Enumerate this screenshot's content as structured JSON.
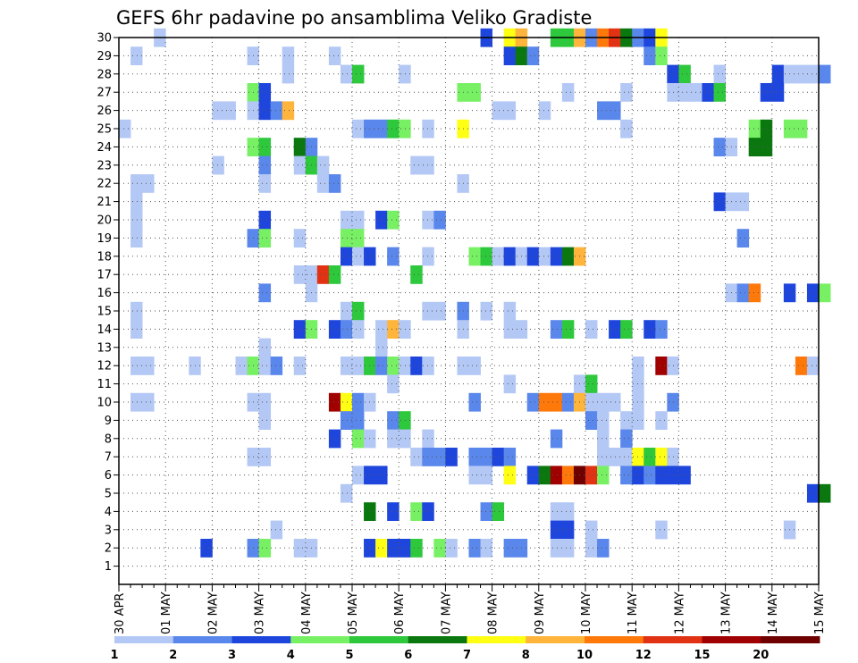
{
  "chart_data": {
    "type": "heatmap",
    "title": "GEFS 6hr padavine po ansamblima Veliko Gradiste",
    "xlabel": "",
    "ylabel": "",
    "y_members": [
      1,
      2,
      3,
      4,
      5,
      6,
      7,
      8,
      9,
      10,
      11,
      12,
      13,
      14,
      15,
      16,
      17,
      18,
      19,
      20,
      21,
      22,
      23,
      24,
      25,
      26,
      27,
      28,
      29,
      30
    ],
    "ylim": [
      0,
      30
    ],
    "x_tick_labels": [
      "30 APR",
      "01 MAY",
      "02 MAY",
      "03 MAY",
      "04 MAY",
      "05 MAY",
      "06 MAY",
      "07 MAY",
      "08 MAY",
      "09 MAY",
      "10 MAY",
      "11 MAY",
      "12 MAY",
      "13 MAY",
      "14 MAY",
      "15 MAY"
    ],
    "time_step_hours": 6,
    "steps_per_day": 4,
    "grid": true,
    "colorbar": {
      "position": "bottom",
      "levels": [
        "1",
        "2",
        "3",
        "4",
        "5",
        "6",
        "7",
        "8",
        "10",
        "12",
        "15",
        "20"
      ],
      "colors": [
        "#b4c8f5",
        "#5a87eb",
        "#1e46dc",
        "#78f064",
        "#2dc83c",
        "#0a780f",
        "#ffff14",
        "#ffb43c",
        "#ff780a",
        "#e13214",
        "#a00000",
        "#6e0000"
      ]
    },
    "cells": [
      [
        30,
        3,
        0
      ],
      [
        30,
        31,
        2
      ],
      [
        30,
        33,
        6
      ],
      [
        30,
        34,
        7
      ],
      [
        30,
        37,
        4
      ],
      [
        30,
        38,
        4
      ],
      [
        30,
        39,
        7
      ],
      [
        30,
        40,
        1
      ],
      [
        30,
        41,
        8
      ],
      [
        30,
        42,
        9
      ],
      [
        30,
        43,
        5
      ],
      [
        30,
        44,
        1
      ],
      [
        30,
        45,
        2
      ],
      [
        30,
        46,
        6
      ],
      [
        29,
        1,
        0
      ],
      [
        29,
        11,
        0
      ],
      [
        29,
        14,
        0
      ],
      [
        29,
        18,
        0
      ],
      [
        29,
        33,
        2
      ],
      [
        29,
        34,
        5
      ],
      [
        29,
        35,
        1
      ],
      [
        29,
        45,
        1
      ],
      [
        29,
        46,
        3
      ],
      [
        28,
        14,
        0
      ],
      [
        28,
        19,
        0
      ],
      [
        28,
        20,
        4
      ],
      [
        28,
        24,
        0
      ],
      [
        28,
        47,
        2
      ],
      [
        28,
        48,
        4
      ],
      [
        28,
        51,
        0
      ],
      [
        28,
        56,
        2
      ],
      [
        28,
        57,
        0
      ],
      [
        28,
        58,
        0
      ],
      [
        28,
        59,
        0
      ],
      [
        28,
        60,
        1
      ],
      [
        27,
        11,
        3
      ],
      [
        27,
        12,
        2
      ],
      [
        27,
        29,
        3
      ],
      [
        27,
        30,
        3
      ],
      [
        27,
        38,
        0
      ],
      [
        27,
        43,
        0
      ],
      [
        27,
        47,
        0
      ],
      [
        27,
        48,
        0
      ],
      [
        27,
        49,
        0
      ],
      [
        27,
        50,
        2
      ],
      [
        27,
        51,
        4
      ],
      [
        27,
        55,
        2
      ],
      [
        27,
        56,
        2
      ],
      [
        26,
        8,
        0
      ],
      [
        26,
        9,
        0
      ],
      [
        26,
        11,
        0
      ],
      [
        26,
        12,
        2
      ],
      [
        26,
        13,
        1
      ],
      [
        26,
        14,
        7
      ],
      [
        26,
        32,
        0
      ],
      [
        26,
        33,
        0
      ],
      [
        26,
        36,
        0
      ],
      [
        26,
        41,
        1
      ],
      [
        26,
        42,
        1
      ],
      [
        25,
        0,
        0
      ],
      [
        25,
        20,
        0
      ],
      [
        25,
        21,
        1
      ],
      [
        25,
        22,
        1
      ],
      [
        25,
        23,
        4
      ],
      [
        25,
        24,
        3
      ],
      [
        25,
        26,
        0
      ],
      [
        25,
        29,
        6
      ],
      [
        25,
        43,
        0
      ],
      [
        25,
        54,
        3
      ],
      [
        25,
        55,
        5
      ],
      [
        25,
        57,
        3
      ],
      [
        25,
        58,
        3
      ],
      [
        24,
        11,
        3
      ],
      [
        24,
        12,
        4
      ],
      [
        24,
        15,
        5
      ],
      [
        24,
        16,
        1
      ],
      [
        24,
        51,
        1
      ],
      [
        24,
        52,
        0
      ],
      [
        24,
        54,
        5
      ],
      [
        24,
        55,
        5
      ],
      [
        23,
        8,
        0
      ],
      [
        23,
        12,
        1
      ],
      [
        23,
        15,
        0
      ],
      [
        23,
        16,
        4
      ],
      [
        23,
        17,
        0
      ],
      [
        23,
        25,
        0
      ],
      [
        23,
        26,
        0
      ],
      [
        22,
        1,
        0
      ],
      [
        22,
        2,
        0
      ],
      [
        22,
        12,
        0
      ],
      [
        22,
        17,
        0
      ],
      [
        22,
        18,
        1
      ],
      [
        22,
        29,
        0
      ],
      [
        21,
        1,
        0
      ],
      [
        21,
        51,
        2
      ],
      [
        21,
        52,
        0
      ],
      [
        21,
        53,
        0
      ],
      [
        20,
        1,
        0
      ],
      [
        20,
        12,
        2
      ],
      [
        20,
        19,
        0
      ],
      [
        20,
        20,
        0
      ],
      [
        20,
        22,
        2
      ],
      [
        20,
        23,
        3
      ],
      [
        20,
        26,
        0
      ],
      [
        20,
        27,
        1
      ],
      [
        19,
        1,
        0
      ],
      [
        19,
        11,
        1
      ],
      [
        19,
        12,
        3
      ],
      [
        19,
        15,
        0
      ],
      [
        19,
        19,
        3
      ],
      [
        19,
        20,
        3
      ],
      [
        19,
        53,
        1
      ],
      [
        18,
        19,
        2
      ],
      [
        18,
        20,
        0
      ],
      [
        18,
        21,
        2
      ],
      [
        18,
        23,
        1
      ],
      [
        18,
        26,
        0
      ],
      [
        18,
        30,
        3
      ],
      [
        18,
        31,
        4
      ],
      [
        18,
        32,
        0
      ],
      [
        18,
        33,
        2
      ],
      [
        18,
        34,
        0
      ],
      [
        18,
        35,
        2
      ],
      [
        18,
        36,
        0
      ],
      [
        18,
        37,
        2
      ],
      [
        18,
        38,
        5
      ],
      [
        18,
        39,
        7
      ],
      [
        17,
        15,
        0
      ],
      [
        17,
        16,
        0
      ],
      [
        17,
        17,
        9
      ],
      [
        17,
        18,
        4
      ],
      [
        17,
        25,
        4
      ],
      [
        16,
        12,
        1
      ],
      [
        16,
        16,
        0
      ],
      [
        16,
        52,
        0
      ],
      [
        16,
        53,
        1
      ],
      [
        16,
        54,
        8
      ],
      [
        16,
        57,
        2
      ],
      [
        16,
        59,
        2
      ],
      [
        16,
        60,
        3
      ],
      [
        15,
        1,
        0
      ],
      [
        15,
        19,
        0
      ],
      [
        15,
        20,
        4
      ],
      [
        15,
        26,
        0
      ],
      [
        15,
        27,
        0
      ],
      [
        15,
        29,
        1
      ],
      [
        15,
        31,
        0
      ],
      [
        15,
        33,
        0
      ],
      [
        14,
        1,
        0
      ],
      [
        14,
        15,
        2
      ],
      [
        14,
        16,
        3
      ],
      [
        14,
        18,
        2
      ],
      [
        14,
        19,
        1
      ],
      [
        14,
        20,
        0
      ],
      [
        14,
        22,
        0
      ],
      [
        14,
        23,
        7
      ],
      [
        14,
        24,
        0
      ],
      [
        14,
        29,
        0
      ],
      [
        14,
        33,
        0
      ],
      [
        14,
        34,
        0
      ],
      [
        14,
        37,
        1
      ],
      [
        14,
        38,
        4
      ],
      [
        14,
        40,
        0
      ],
      [
        14,
        42,
        2
      ],
      [
        14,
        43,
        4
      ],
      [
        14,
        45,
        2
      ],
      [
        14,
        46,
        1
      ],
      [
        13,
        12,
        0
      ],
      [
        13,
        22,
        0
      ],
      [
        12,
        1,
        0
      ],
      [
        12,
        2,
        0
      ],
      [
        12,
        6,
        0
      ],
      [
        12,
        10,
        0
      ],
      [
        12,
        11,
        3
      ],
      [
        12,
        12,
        0
      ],
      [
        12,
        13,
        1
      ],
      [
        12,
        15,
        0
      ],
      [
        12,
        19,
        0
      ],
      [
        12,
        20,
        0
      ],
      [
        12,
        21,
        4
      ],
      [
        12,
        22,
        1
      ],
      [
        12,
        23,
        3
      ],
      [
        12,
        24,
        0
      ],
      [
        12,
        25,
        2
      ],
      [
        12,
        26,
        0
      ],
      [
        12,
        29,
        0
      ],
      [
        12,
        30,
        0
      ],
      [
        12,
        44,
        0
      ],
      [
        12,
        46,
        10
      ],
      [
        12,
        47,
        0
      ],
      [
        12,
        58,
        8
      ],
      [
        12,
        59,
        0
      ],
      [
        11,
        23,
        0
      ],
      [
        11,
        33,
        0
      ],
      [
        11,
        39,
        0
      ],
      [
        11,
        40,
        4
      ],
      [
        11,
        44,
        0
      ],
      [
        10,
        1,
        0
      ],
      [
        10,
        2,
        0
      ],
      [
        10,
        11,
        0
      ],
      [
        10,
        12,
        0
      ],
      [
        10,
        18,
        10
      ],
      [
        10,
        19,
        6
      ],
      [
        10,
        20,
        1
      ],
      [
        10,
        21,
        0
      ],
      [
        10,
        30,
        1
      ],
      [
        10,
        35,
        1
      ],
      [
        10,
        36,
        8
      ],
      [
        10,
        37,
        8
      ],
      [
        10,
        38,
        1
      ],
      [
        10,
        39,
        7
      ],
      [
        10,
        40,
        0
      ],
      [
        10,
        41,
        0
      ],
      [
        10,
        42,
        0
      ],
      [
        10,
        44,
        0
      ],
      [
        10,
        47,
        1
      ],
      [
        9,
        12,
        0
      ],
      [
        9,
        19,
        1
      ],
      [
        9,
        20,
        1
      ],
      [
        9,
        23,
        1
      ],
      [
        9,
        24,
        4
      ],
      [
        9,
        40,
        1
      ],
      [
        9,
        41,
        0
      ],
      [
        9,
        43,
        0
      ],
      [
        9,
        44,
        0
      ],
      [
        9,
        46,
        0
      ],
      [
        8,
        18,
        2
      ],
      [
        8,
        20,
        3
      ],
      [
        8,
        21,
        0
      ],
      [
        8,
        23,
        0
      ],
      [
        8,
        24,
        0
      ],
      [
        8,
        26,
        0
      ],
      [
        8,
        37,
        1
      ],
      [
        8,
        41,
        0
      ],
      [
        8,
        43,
        1
      ],
      [
        7,
        11,
        0
      ],
      [
        7,
        12,
        0
      ],
      [
        7,
        25,
        0
      ],
      [
        7,
        26,
        1
      ],
      [
        7,
        27,
        1
      ],
      [
        7,
        28,
        2
      ],
      [
        7,
        30,
        1
      ],
      [
        7,
        31,
        1
      ],
      [
        7,
        32,
        2
      ],
      [
        7,
        33,
        1
      ],
      [
        7,
        41,
        0
      ],
      [
        7,
        42,
        0
      ],
      [
        7,
        43,
        0
      ],
      [
        7,
        44,
        6
      ],
      [
        7,
        45,
        4
      ],
      [
        7,
        46,
        6
      ],
      [
        7,
        47,
        0
      ],
      [
        6,
        20,
        0
      ],
      [
        6,
        21,
        2
      ],
      [
        6,
        22,
        2
      ],
      [
        6,
        30,
        0
      ],
      [
        6,
        31,
        0
      ],
      [
        6,
        33,
        6
      ],
      [
        6,
        35,
        2
      ],
      [
        6,
        36,
        5
      ],
      [
        6,
        37,
        10
      ],
      [
        6,
        38,
        8
      ],
      [
        6,
        39,
        11
      ],
      [
        6,
        40,
        9
      ],
      [
        6,
        41,
        3
      ],
      [
        6,
        43,
        1
      ],
      [
        6,
        44,
        2
      ],
      [
        6,
        45,
        1
      ],
      [
        6,
        46,
        2
      ],
      [
        6,
        47,
        2
      ],
      [
        6,
        48,
        2
      ],
      [
        5,
        19,
        0
      ],
      [
        5,
        59,
        2
      ],
      [
        5,
        60,
        5
      ],
      [
        4,
        21,
        5
      ],
      [
        4,
        23,
        2
      ],
      [
        4,
        25,
        3
      ],
      [
        4,
        26,
        2
      ],
      [
        4,
        31,
        1
      ],
      [
        4,
        32,
        4
      ],
      [
        4,
        37,
        0
      ],
      [
        4,
        38,
        0
      ],
      [
        3,
        13,
        0
      ],
      [
        3,
        37,
        2
      ],
      [
        3,
        38,
        2
      ],
      [
        3,
        40,
        0
      ],
      [
        3,
        46,
        0
      ],
      [
        3,
        57,
        0
      ],
      [
        2,
        7,
        2
      ],
      [
        2,
        11,
        1
      ],
      [
        2,
        12,
        3
      ],
      [
        2,
        15,
        0
      ],
      [
        2,
        16,
        0
      ],
      [
        2,
        21,
        2
      ],
      [
        2,
        22,
        6
      ],
      [
        2,
        23,
        2
      ],
      [
        2,
        24,
        2
      ],
      [
        2,
        25,
        4
      ],
      [
        2,
        27,
        3
      ],
      [
        2,
        28,
        0
      ],
      [
        2,
        30,
        1
      ],
      [
        2,
        31,
        0
      ],
      [
        2,
        33,
        1
      ],
      [
        2,
        34,
        1
      ],
      [
        2,
        37,
        0
      ],
      [
        2,
        38,
        0
      ],
      [
        2,
        40,
        0
      ],
      [
        2,
        41,
        1
      ]
    ]
  }
}
